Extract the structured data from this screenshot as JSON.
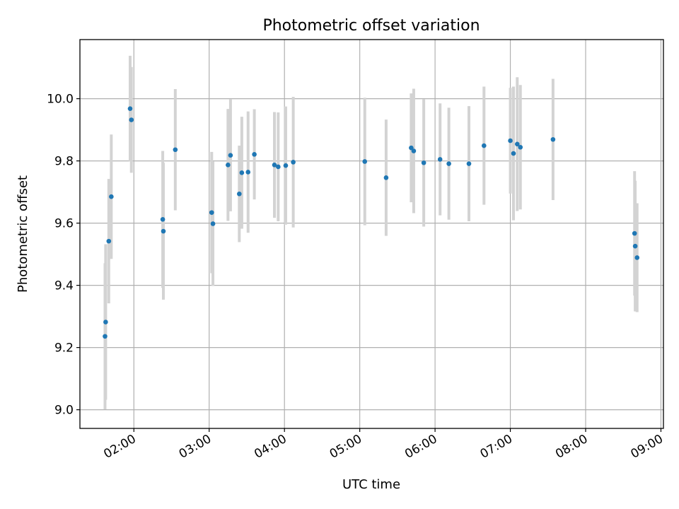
{
  "chart_data": {
    "type": "scatter",
    "title": "Photometric offset variation",
    "xlabel": "UTC time",
    "ylabel": "Photometric offset",
    "x_format": "HH:MM",
    "xlim": [
      "01:17",
      "09:02"
    ],
    "ylim": [
      8.94,
      10.19
    ],
    "x_ticks": [
      "02:00",
      "03:00",
      "04:00",
      "05:00",
      "06:00",
      "07:00",
      "08:00",
      "09:00"
    ],
    "y_ticks": [
      9.0,
      9.2,
      9.4,
      9.6,
      9.8,
      10.0
    ],
    "y_tick_labels": [
      "9.0",
      "9.2",
      "9.4",
      "9.6",
      "9.8",
      "10.0"
    ],
    "grid": true,
    "colors": {
      "points": "#1f77b4",
      "errorbars": "#d3d3d3",
      "grid": "#b0b0b0"
    },
    "series": [
      {
        "points": [
          {
            "x": "01:37:00",
            "y": 9.236,
            "err": 0.235
          },
          {
            "x": "01:37:30",
            "y": 9.282,
            "err": 0.25
          },
          {
            "x": "01:40:00",
            "y": 9.542,
            "err": 0.2
          },
          {
            "x": "01:42:00",
            "y": 9.685,
            "err": 0.2
          },
          {
            "x": "01:57:00",
            "y": 9.968,
            "err": 0.17
          },
          {
            "x": "01:58:00",
            "y": 9.932,
            "err": 0.17
          },
          {
            "x": "02:23:00",
            "y": 9.612,
            "err": 0.22
          },
          {
            "x": "02:23:30",
            "y": 9.574,
            "err": 0.22
          },
          {
            "x": "02:33:00",
            "y": 9.836,
            "err": 0.195
          },
          {
            "x": "03:02:00",
            "y": 9.634,
            "err": 0.195
          },
          {
            "x": "03:03:00",
            "y": 9.598,
            "err": 0.2
          },
          {
            "x": "03:15:00",
            "y": 9.787,
            "err": 0.18
          },
          {
            "x": "03:17:00",
            "y": 9.818,
            "err": 0.18
          },
          {
            "x": "03:24:00",
            "y": 9.694,
            "err": 0.155
          },
          {
            "x": "03:26:00",
            "y": 9.762,
            "err": 0.18
          },
          {
            "x": "03:31:00",
            "y": 9.764,
            "err": 0.195
          },
          {
            "x": "03:36:00",
            "y": 9.821,
            "err": 0.145
          },
          {
            "x": "03:52:00",
            "y": 9.787,
            "err": 0.17
          },
          {
            "x": "03:55:00",
            "y": 9.781,
            "err": 0.175
          },
          {
            "x": "04:01:00",
            "y": 9.785,
            "err": 0.19
          },
          {
            "x": "04:07:00",
            "y": 9.796,
            "err": 0.21
          },
          {
            "x": "05:04:00",
            "y": 9.798,
            "err": 0.205
          },
          {
            "x": "05:21:00",
            "y": 9.746,
            "err": 0.187
          },
          {
            "x": "05:41:00",
            "y": 9.842,
            "err": 0.175
          },
          {
            "x": "05:43:00",
            "y": 9.832,
            "err": 0.2
          },
          {
            "x": "05:51:00",
            "y": 9.794,
            "err": 0.205
          },
          {
            "x": "06:04:00",
            "y": 9.805,
            "err": 0.18
          },
          {
            "x": "06:11:00",
            "y": 9.791,
            "err": 0.18
          },
          {
            "x": "06:27:00",
            "y": 9.791,
            "err": 0.185
          },
          {
            "x": "06:39:00",
            "y": 9.849,
            "err": 0.19
          },
          {
            "x": "07:00:00",
            "y": 9.865,
            "err": 0.17
          },
          {
            "x": "07:02:30",
            "y": 9.824,
            "err": 0.215
          },
          {
            "x": "07:05:30",
            "y": 9.854,
            "err": 0.215
          },
          {
            "x": "07:08:00",
            "y": 9.844,
            "err": 0.2
          },
          {
            "x": "07:34:00",
            "y": 9.869,
            "err": 0.195
          },
          {
            "x": "08:39:00",
            "y": 9.567,
            "err": 0.2
          },
          {
            "x": "08:39:30",
            "y": 9.526,
            "err": 0.21
          },
          {
            "x": "08:41:00",
            "y": 9.489,
            "err": 0.175
          }
        ]
      }
    ]
  }
}
